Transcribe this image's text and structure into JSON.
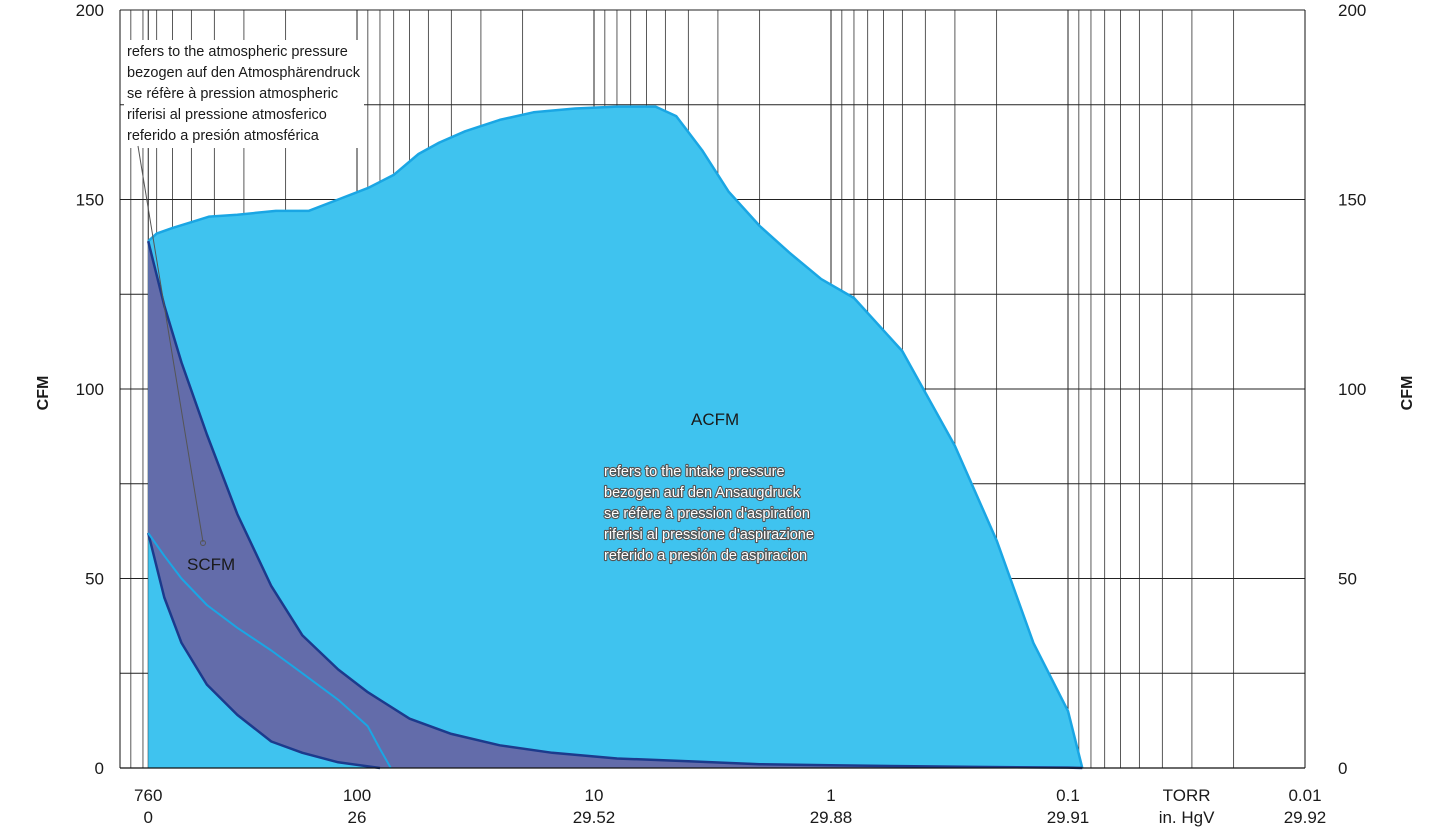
{
  "chart_data": {
    "type": "area",
    "x_scale": "log",
    "x_axis_primary_unit": "TORR",
    "x_axis_secondary_unit": "in. HgV",
    "x_ticks": [
      {
        "x": 760,
        "label": "760",
        "sub": "0"
      },
      {
        "x": 100,
        "label": "100",
        "sub": "26"
      },
      {
        "x": 10,
        "label": "10",
        "sub": "29.52"
      },
      {
        "x": 1,
        "label": "1",
        "sub": "29.88"
      },
      {
        "x": 0.1,
        "label": "0.1",
        "sub": "29.91"
      },
      {
        "x": 0.0316,
        "label": "TORR",
        "sub": "in. HgV"
      },
      {
        "x": 0.01,
        "label": "0.01",
        "sub": "29.92"
      }
    ],
    "xlim": [
      1000,
      0.01
    ],
    "ylim": [
      0,
      200
    ],
    "y_ticks": [
      0,
      50,
      100,
      150,
      200
    ],
    "y_minor_grid": [
      25,
      75,
      125,
      175
    ],
    "ylabel_left": "CFM",
    "ylabel_right": "CFM",
    "series": [
      {
        "name": "ACFM",
        "color": "#3fc3ef",
        "line_color": "#1aa6e4",
        "points": [
          [
            760,
            139
          ],
          [
            700,
            141
          ],
          [
            600,
            142.5
          ],
          [
            500,
            144
          ],
          [
            420,
            145.5
          ],
          [
            320,
            146
          ],
          [
            220,
            147
          ],
          [
            160,
            147
          ],
          [
            120,
            150
          ],
          [
            90,
            153
          ],
          [
            70,
            156.5
          ],
          [
            55,
            162
          ],
          [
            45,
            165
          ],
          [
            35,
            168
          ],
          [
            25,
            171
          ],
          [
            18,
            173
          ],
          [
            12,
            174
          ],
          [
            8,
            174.5
          ],
          [
            5.5,
            174.5
          ],
          [
            4.5,
            172
          ],
          [
            3.5,
            163
          ],
          [
            2.7,
            152
          ],
          [
            2,
            143
          ],
          [
            1.5,
            136
          ],
          [
            1.1,
            129
          ],
          [
            0.8,
            124
          ],
          [
            0.5,
            110
          ],
          [
            0.3,
            85
          ],
          [
            0.2,
            60
          ],
          [
            0.14,
            33
          ],
          [
            0.1,
            15
          ],
          [
            0.087,
            0
          ]
        ]
      },
      {
        "name": "SCFM",
        "color": "#636caa",
        "line_color": "#1c3a8c",
        "upper": [
          [
            760,
            139
          ],
          [
            650,
            122
          ],
          [
            550,
            107
          ],
          [
            430,
            88
          ],
          [
            320,
            67
          ],
          [
            230,
            48
          ],
          [
            170,
            35
          ],
          [
            120,
            26
          ],
          [
            90,
            20
          ],
          [
            60,
            13
          ],
          [
            40,
            9
          ],
          [
            25,
            6
          ],
          [
            15,
            4
          ],
          [
            8,
            2.5
          ],
          [
            4,
            1.8
          ],
          [
            2,
            1
          ],
          [
            1,
            0.7
          ],
          [
            0.5,
            0.5
          ],
          [
            0.25,
            0.3
          ],
          [
            0.1,
            0.1
          ],
          [
            0.087,
            0
          ]
        ],
        "lower": [
          [
            760,
            62
          ],
          [
            650,
            45
          ],
          [
            550,
            33
          ],
          [
            430,
            22
          ],
          [
            320,
            14
          ],
          [
            230,
            7
          ],
          [
            170,
            4
          ],
          [
            120,
            1.5
          ],
          [
            80,
            0
          ]
        ]
      },
      {
        "name": "",
        "color": "#1aa6e4",
        "type": "line",
        "points": [
          [
            760,
            62
          ],
          [
            650,
            56
          ],
          [
            550,
            50
          ],
          [
            430,
            43
          ],
          [
            320,
            37
          ],
          [
            230,
            31
          ],
          [
            170,
            25
          ],
          [
            120,
            18
          ],
          [
            90,
            11
          ],
          [
            80,
            5
          ],
          [
            72,
            0
          ]
        ]
      }
    ],
    "labels": {
      "acfm": "ACFM",
      "scfm": "SCFM",
      "atmospheric_note": [
        "refers to the atmospheric pressure",
        "bezogen auf den Atmosphärendruck",
        "se réfère à pression atmospheric",
        "riferisi al pressione atmosferico",
        "referido a presión atmosférica"
      ],
      "intake_note": [
        "refers to the intake pressure",
        "bezogen auf den Ansaugdruck",
        "se réfère à pression d'aspiration",
        "riferisi al pressione d'aspirazione",
        "referido a presión de aspiracion"
      ]
    }
  }
}
